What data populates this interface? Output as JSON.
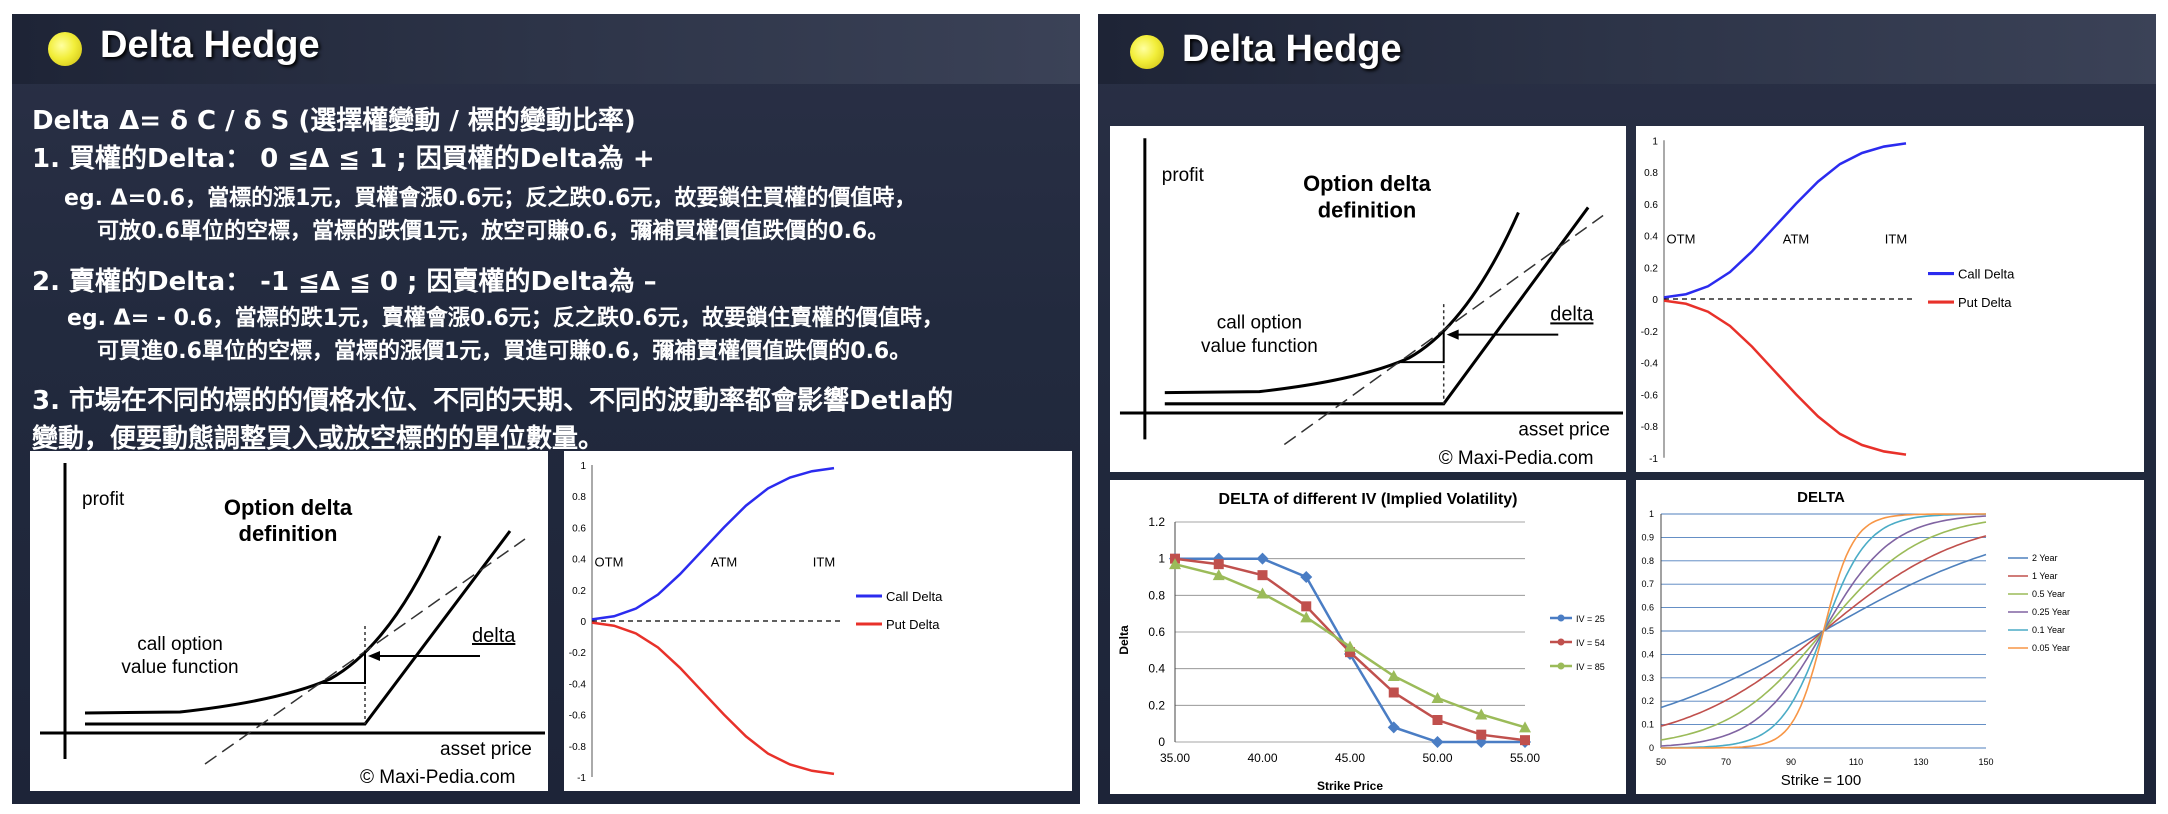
{
  "left_slide": {
    "title": "Delta Hedge",
    "lines": [
      "Delta Δ= δ C / δ S  (選擇權變動 / 標的變動比率)",
      "1. 買權的Delta：   0 ≦Δ ≦ 1   ;  因買權的Delta為 +",
      "eg. Δ=0.6，當標的漲1元，買權會漲0.6元；反之跌0.6元，故要鎖住買權的價值時，",
      "可放0.6單位的空標，當標的跌價1元，放空可賺0.6，彌補買權價值跌價的0.6。",
      "2. 賣權的Delta：   -1 ≦Δ ≦ 0   ;  因賣權的Delta為 –",
      "eg. Δ= - 0.6，當標的跌1元，賣權會漲0.6元；反之跌0.6元，故要鎖住賣權的價值時，",
      "可買進0.6單位的空標，當標的漲價1元，買進可賺0.6，彌補賣權價值跌價的0.6。",
      "3. 市場在不同的標的的價格水位、不同的天期、不同的波動率都會影響Detla的",
      "變動，便要動態調整買入或放空標的的單位數量。"
    ]
  },
  "right_slide": {
    "title": "Delta Hedge"
  },
  "option_diagram": {
    "profit": "profit",
    "title_line1": "Option delta",
    "title_line2": "definition",
    "call_line1": "call option",
    "call_line2": "value function",
    "delta": "delta",
    "asset_price": "asset price",
    "credit": "© Maxi-Pedia.com"
  },
  "call_put_chart": {
    "type": "line",
    "ytick_labels": [
      "1",
      "0.8",
      "0.6",
      "0.4",
      "0.2",
      "0",
      "-0.2",
      "-0.4",
      "-0.6",
      "-0.8",
      "-1"
    ],
    "region_labels": [
      "OTM",
      "ATM",
      "ITM"
    ],
    "ylim": [
      -1,
      1
    ],
    "series": [
      {
        "name": "Call Delta",
        "color": "#2b2bef",
        "values": [
          0.01,
          0.03,
          0.08,
          0.17,
          0.3,
          0.45,
          0.6,
          0.74,
          0.85,
          0.92,
          0.96,
          0.98
        ]
      },
      {
        "name": "Put Delta",
        "color": "#e8312a",
        "values": [
          -0.01,
          -0.03,
          -0.08,
          -0.17,
          -0.3,
          -0.45,
          -0.6,
          -0.74,
          -0.85,
          -0.92,
          -0.96,
          -0.98
        ]
      }
    ]
  },
  "iv_chart": {
    "type": "line",
    "title": "DELTA of different IV (Implied Volatility)",
    "xlabel": "Strike Price",
    "ylabel": "Delta",
    "x": [
      35,
      37.5,
      40,
      42.5,
      45,
      47.5,
      50,
      52.5,
      55
    ],
    "x_tick_labels": [
      "35.00",
      "40.00",
      "45.00",
      "50.00",
      "55.00"
    ],
    "y_tick_labels": [
      "1.2",
      "1",
      "0.8",
      "0.6",
      "0.4",
      "0.2",
      "0"
    ],
    "ylim": [
      0,
      1.2
    ],
    "series": [
      {
        "name": "IV = 25",
        "color": "#4a7dc4",
        "marker": "diamond",
        "values": [
          1.0,
          1.0,
          1.0,
          0.9,
          0.48,
          0.08,
          0.0,
          0.0,
          0.0
        ]
      },
      {
        "name": "IV = 54",
        "color": "#c0504d",
        "marker": "square",
        "values": [
          1.0,
          0.97,
          0.91,
          0.74,
          0.49,
          0.27,
          0.12,
          0.04,
          0.01
        ]
      },
      {
        "name": "IV = 85",
        "color": "#9bbb59",
        "marker": "triangle",
        "values": [
          0.97,
          0.91,
          0.81,
          0.68,
          0.52,
          0.36,
          0.24,
          0.15,
          0.08
        ]
      }
    ]
  },
  "delta_tenor_chart": {
    "type": "line",
    "title": "DELTA",
    "xlabel": "Strike = 100",
    "x_tick_labels": [
      "50",
      "70",
      "90",
      "110",
      "130",
      "150"
    ],
    "y_tick_labels": [
      "1",
      "0.9",
      "0.8",
      "0.7",
      "0.6",
      "0.5",
      "0.4",
      "0.3",
      "0.2",
      "0.1",
      "0"
    ],
    "xlim": [
      50,
      150
    ],
    "ylim": [
      0,
      1
    ],
    "series": [
      {
        "name": "2 Year",
        "color": "#4f81bd",
        "scale": 32
      },
      {
        "name": "1 Year",
        "color": "#c0504d",
        "scale": 22
      },
      {
        "name": "0.5 Year",
        "color": "#9bbb59",
        "scale": 15
      },
      {
        "name": "0.25 Year",
        "color": "#8064a2",
        "scale": 10.5
      },
      {
        "name": "0.1 Year",
        "color": "#4bacc6",
        "scale": 6.8
      },
      {
        "name": "0.05 Year",
        "color": "#f79646",
        "scale": 4.6
      }
    ]
  }
}
